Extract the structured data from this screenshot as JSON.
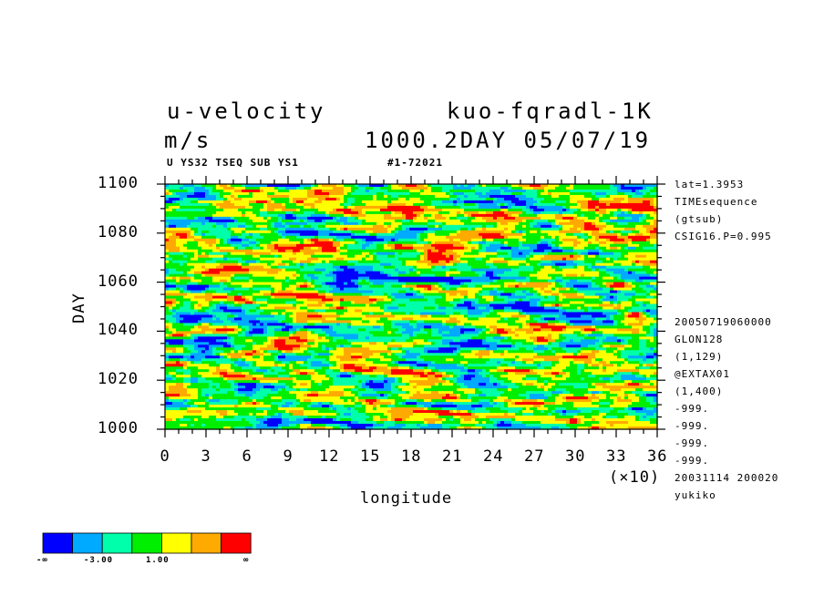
{
  "header": {
    "variable": "u-velocity",
    "units": "m/s",
    "experiment": "kuo-fqradl-1K",
    "time_label": "1000.2DAY 05/07/19",
    "sub_left": "U YS32 TSEQ SUB YS1",
    "sub_right": "#1-72021"
  },
  "side_info": [
    "lat=1.3953",
    "TIMEsequence",
    "(gtsub)",
    "CSIG16.P=0.995",
    "20050719060000",
    "GLON128",
    "(1,129)",
    "@EXTAX01",
    "(1,400)",
    "-999.",
    "-999.",
    "-999.",
    "-999.",
    "20031114 200020",
    "yukiko"
  ],
  "chart_data": {
    "type": "heatmap",
    "x": {
      "label": "longitude",
      "multiplier": "(×10)",
      "range": [
        0,
        36
      ],
      "ticks": [
        "0",
        "3",
        "6",
        "9",
        "12",
        "15",
        "18",
        "21",
        "24",
        "27",
        "30",
        "33",
        "36"
      ]
    },
    "y": {
      "label": "DAY",
      "range": [
        1000,
        1100
      ],
      "ticks": [
        "1000",
        "1020",
        "1040",
        "1060",
        "1080",
        "1100"
      ]
    },
    "colorbar": {
      "colors": [
        "#0000ff",
        "#00aaff",
        "#00ffaa",
        "#00ee00",
        "#ffff00",
        "#ffaa00",
        "#ff0000"
      ],
      "labels": [
        "-∞",
        "-3.00",
        "1.00",
        "∞"
      ]
    }
  }
}
